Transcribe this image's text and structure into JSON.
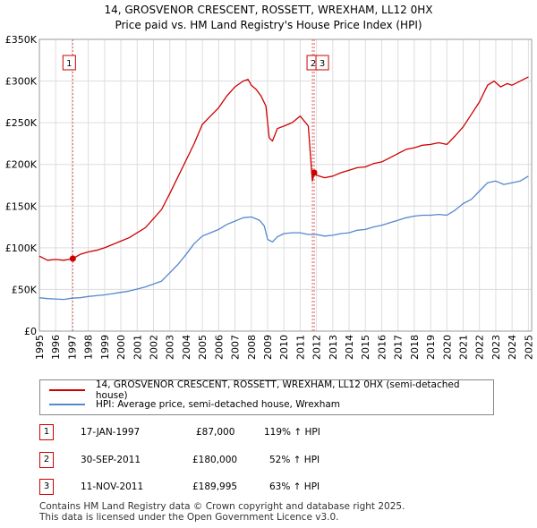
{
  "header": {
    "title_line1": "14, GROSVENOR CRESCENT, ROSSETT, WREXHAM, LL12 0HX",
    "title_line2": "Price paid vs. HM Land Registry's House Price Index (HPI)"
  },
  "chart_data": {
    "type": "line",
    "x_range": [
      1995,
      2025.2
    ],
    "y_range": [
      0,
      350000
    ],
    "y_ticks": [
      0,
      50000,
      100000,
      150000,
      200000,
      250000,
      300000,
      350000
    ],
    "y_tick_labels": [
      "£0",
      "£50K",
      "£100K",
      "£150K",
      "£200K",
      "£250K",
      "£300K",
      "£350K"
    ],
    "x_ticks": [
      1995,
      1996,
      1997,
      1998,
      1999,
      2000,
      2001,
      2002,
      2003,
      2004,
      2005,
      2006,
      2007,
      2008,
      2009,
      2010,
      2011,
      2012,
      2013,
      2014,
      2015,
      2016,
      2017,
      2018,
      2019,
      2020,
      2021,
      2022,
      2023,
      2024,
      2025
    ],
    "grid": true,
    "colors": {
      "property": "#cc0000",
      "hpi": "#5588cc",
      "sale_line": "#e06060",
      "grid": "#dddddd"
    },
    "series": [
      {
        "name": "14, GROSVENOR CRESCENT, ROSSETT, WREXHAM, LL12 0HX (semi-detached house)",
        "points": [
          [
            1995.0,
            90000
          ],
          [
            1995.5,
            85000
          ],
          [
            1996.0,
            86000
          ],
          [
            1996.5,
            85000
          ],
          [
            1997.05,
            87000
          ],
          [
            1997.5,
            92000
          ],
          [
            1998.0,
            95000
          ],
          [
            1998.5,
            97000
          ],
          [
            1999.0,
            100000
          ],
          [
            1999.5,
            104000
          ],
          [
            2000.0,
            108000
          ],
          [
            2000.5,
            112000
          ],
          [
            2001.0,
            118000
          ],
          [
            2001.5,
            124000
          ],
          [
            2002.0,
            135000
          ],
          [
            2002.5,
            146000
          ],
          [
            2003.0,
            165000
          ],
          [
            2003.5,
            185000
          ],
          [
            2004.0,
            205000
          ],
          [
            2004.5,
            225000
          ],
          [
            2005.0,
            248000
          ],
          [
            2005.5,
            258000
          ],
          [
            2006.0,
            268000
          ],
          [
            2006.5,
            282000
          ],
          [
            2007.0,
            293000
          ],
          [
            2007.5,
            300000
          ],
          [
            2007.8,
            302000
          ],
          [
            2008.0,
            295000
          ],
          [
            2008.3,
            290000
          ],
          [
            2008.6,
            282000
          ],
          [
            2008.9,
            270000
          ],
          [
            2009.1,
            232000
          ],
          [
            2009.3,
            228000
          ],
          [
            2009.6,
            243000
          ],
          [
            2010.0,
            246000
          ],
          [
            2010.5,
            250000
          ],
          [
            2011.0,
            258000
          ],
          [
            2011.5,
            246000
          ],
          [
            2011.75,
            180000
          ],
          [
            2011.86,
            189995
          ],
          [
            2012.0,
            187000
          ],
          [
            2012.5,
            184000
          ],
          [
            2013.0,
            186000
          ],
          [
            2013.5,
            190000
          ],
          [
            2014.0,
            193000
          ],
          [
            2014.5,
            196000
          ],
          [
            2015.0,
            197000
          ],
          [
            2015.5,
            201000
          ],
          [
            2016.0,
            203000
          ],
          [
            2016.5,
            208000
          ],
          [
            2017.0,
            213000
          ],
          [
            2017.5,
            218000
          ],
          [
            2018.0,
            220000
          ],
          [
            2018.5,
            223000
          ],
          [
            2019.0,
            224000
          ],
          [
            2019.5,
            226000
          ],
          [
            2020.0,
            224000
          ],
          [
            2020.5,
            234000
          ],
          [
            2021.0,
            245000
          ],
          [
            2021.5,
            260000
          ],
          [
            2022.0,
            275000
          ],
          [
            2022.5,
            295000
          ],
          [
            2022.9,
            300000
          ],
          [
            2023.3,
            293000
          ],
          [
            2023.7,
            297000
          ],
          [
            2024.0,
            295000
          ],
          [
            2024.5,
            300000
          ],
          [
            2025.0,
            305000
          ]
        ]
      },
      {
        "name": "HPI: Average price, semi-detached house, Wrexham",
        "points": [
          [
            1995.0,
            40000
          ],
          [
            1995.5,
            39000
          ],
          [
            1996.0,
            38500
          ],
          [
            1996.5,
            38000
          ],
          [
            1997.0,
            39500
          ],
          [
            1997.5,
            40000
          ],
          [
            1998.0,
            41500
          ],
          [
            1998.5,
            42500
          ],
          [
            1999.0,
            43500
          ],
          [
            1999.5,
            45000
          ],
          [
            2000.0,
            46500
          ],
          [
            2000.5,
            48000
          ],
          [
            2001.0,
            50500
          ],
          [
            2001.5,
            53000
          ],
          [
            2002.0,
            56500
          ],
          [
            2002.5,
            60000
          ],
          [
            2003.0,
            70000
          ],
          [
            2003.5,
            80000
          ],
          [
            2004.0,
            92000
          ],
          [
            2004.5,
            105000
          ],
          [
            2005.0,
            114000
          ],
          [
            2005.5,
            118000
          ],
          [
            2006.0,
            122000
          ],
          [
            2006.5,
            128000
          ],
          [
            2007.0,
            132000
          ],
          [
            2007.5,
            136000
          ],
          [
            2008.0,
            137000
          ],
          [
            2008.5,
            133000
          ],
          [
            2008.8,
            126000
          ],
          [
            2009.0,
            110000
          ],
          [
            2009.3,
            107000
          ],
          [
            2009.6,
            113000
          ],
          [
            2010.0,
            117000
          ],
          [
            2010.5,
            118000
          ],
          [
            2011.0,
            118000
          ],
          [
            2011.5,
            116000
          ],
          [
            2012.0,
            116000
          ],
          [
            2012.5,
            114000
          ],
          [
            2013.0,
            115000
          ],
          [
            2013.5,
            117000
          ],
          [
            2014.0,
            118000
          ],
          [
            2014.5,
            121000
          ],
          [
            2015.0,
            122000
          ],
          [
            2015.5,
            125000
          ],
          [
            2016.0,
            127000
          ],
          [
            2016.5,
            130000
          ],
          [
            2017.0,
            133000
          ],
          [
            2017.5,
            136000
          ],
          [
            2018.0,
            138000
          ],
          [
            2018.5,
            139000
          ],
          [
            2019.0,
            139000
          ],
          [
            2019.5,
            140000
          ],
          [
            2020.0,
            139000
          ],
          [
            2020.5,
            145000
          ],
          [
            2021.0,
            153000
          ],
          [
            2021.5,
            158000
          ],
          [
            2022.0,
            168000
          ],
          [
            2022.5,
            178000
          ],
          [
            2023.0,
            180000
          ],
          [
            2023.5,
            176000
          ],
          [
            2024.0,
            178000
          ],
          [
            2024.5,
            180000
          ],
          [
            2025.0,
            186000
          ]
        ]
      }
    ],
    "sales": [
      {
        "id": "1",
        "x": 1997.05,
        "price": 87000,
        "date": "17-JAN-1997",
        "price_label": "£87,000",
        "hpi_change": "119% ↑ HPI"
      },
      {
        "id": "2",
        "x": 2011.75,
        "price": 180000,
        "date": "30-SEP-2011",
        "price_label": "£180,000",
        "hpi_change": "52% ↑ HPI"
      },
      {
        "id": "3",
        "x": 2011.86,
        "price": 189995,
        "date": "11-NOV-2011",
        "price_label": "£189,995",
        "hpi_change": "63% ↑ HPI"
      }
    ],
    "chart_markers": [
      "1",
      "2",
      "3"
    ]
  },
  "legend": {
    "property_label": "14, GROSVENOR CRESCENT, ROSSETT, WREXHAM, LL12 0HX (semi-detached house)",
    "hpi_label": "HPI: Average price, semi-detached house, Wrexham"
  },
  "footer": {
    "line1": "Contains HM Land Registry data © Crown copyright and database right 2025.",
    "line2": "This data is licensed under the Open Government Licence v3.0."
  }
}
